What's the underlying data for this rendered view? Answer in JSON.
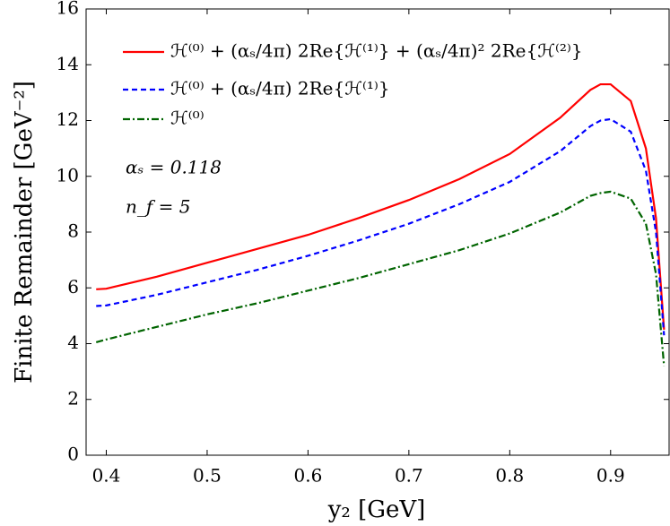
{
  "chart_data": {
    "type": "line",
    "xlabel": "y₂ [GeV]",
    "ylabel": "Finite Remainder [GeV⁻²]",
    "annotations": [
      "αₛ = 0.118",
      "n_f = 5"
    ],
    "x": [
      0.39,
      0.4,
      0.45,
      0.5,
      0.55,
      0.6,
      0.65,
      0.7,
      0.75,
      0.8,
      0.85,
      0.88,
      0.89,
      0.9,
      0.92,
      0.935,
      0.945,
      0.953
    ],
    "series": [
      {
        "name": "ℋ⁽⁰⁾ + (αₛ/4π) 2Re{ℋ⁽¹⁾} + (αₛ/4π)² 2Re{ℋ⁽²⁾}",
        "color": "#ff0000",
        "dash": "none",
        "values": [
          5.95,
          5.97,
          6.4,
          6.9,
          7.4,
          7.9,
          8.5,
          9.15,
          9.9,
          10.8,
          12.1,
          13.1,
          13.3,
          13.3,
          12.7,
          11.0,
          8.5,
          4.5
        ]
      },
      {
        "name": "ℋ⁽⁰⁾ + (αₛ/4π) 2Re{ℋ⁽¹⁾}",
        "color": "#0000ff",
        "dash": "6 4",
        "values": [
          5.35,
          5.37,
          5.75,
          6.2,
          6.65,
          7.15,
          7.7,
          8.3,
          9.0,
          9.8,
          10.9,
          11.8,
          12.0,
          12.05,
          11.6,
          10.2,
          8.0,
          4.3
        ]
      },
      {
        "name": "ℋ⁽⁰⁾",
        "color": "#006400",
        "dash": "8 3 2 3",
        "values": [
          4.05,
          4.15,
          4.6,
          5.05,
          5.45,
          5.9,
          6.35,
          6.85,
          7.35,
          7.95,
          8.7,
          9.3,
          9.4,
          9.45,
          9.2,
          8.3,
          6.5,
          3.2
        ]
      }
    ],
    "xlim": [
      0.38,
      0.958
    ],
    "ylim": [
      0,
      16
    ],
    "xticks": [
      0.4,
      0.5,
      0.6,
      0.7,
      0.8,
      0.9
    ],
    "yticks": [
      0,
      2,
      4,
      6,
      8,
      10,
      12,
      14,
      16
    ],
    "legend": "upper left"
  }
}
